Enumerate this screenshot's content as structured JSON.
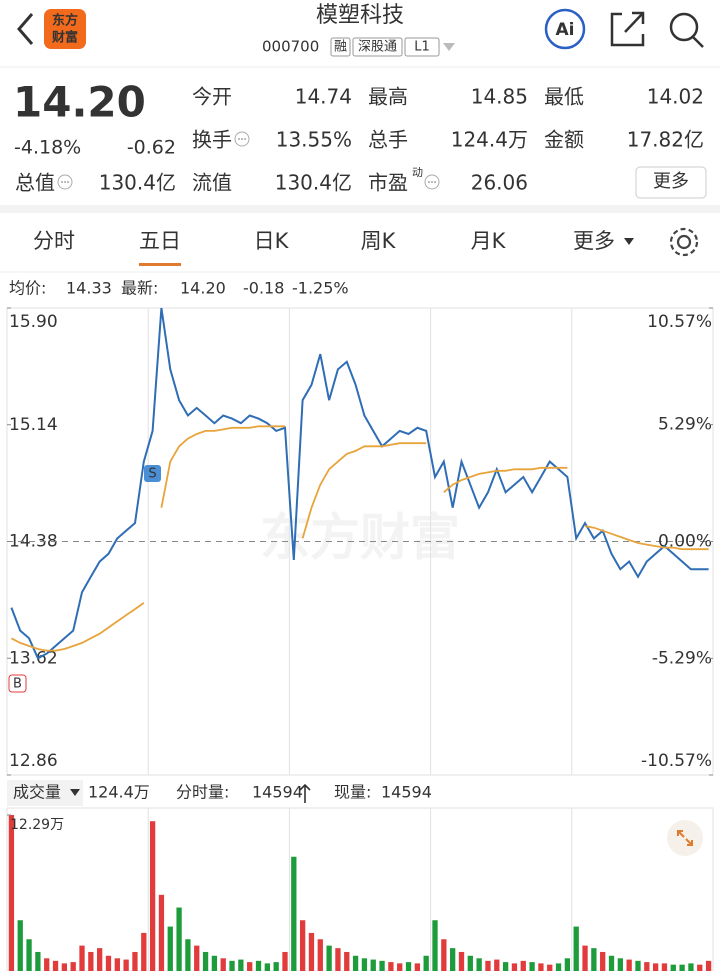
{
  "header": {
    "title": "模塑科技",
    "code": "000700",
    "tags": [
      "融",
      "深股通",
      "L1"
    ],
    "logo": [
      "东方",
      "财富"
    ],
    "ai": "Ai"
  },
  "quote": {
    "price": "14.20",
    "change_percent": "-4.18%",
    "change": "-0.62",
    "more": "更多",
    "fields": [
      [
        {
          "label": "今开",
          "value": "14.74",
          "color": "#1e9b3a"
        },
        {
          "label": "最高",
          "value": "14.85",
          "color": "#e13b3b"
        },
        {
          "label": "最低",
          "value": "14.02",
          "color": "#1e9b3a"
        }
      ],
      [
        {
          "label": "换手",
          "value": "13.55%",
          "info": true
        },
        {
          "label": "总手",
          "value": "124.4万"
        },
        {
          "label": "金额",
          "value": "17.82亿"
        }
      ],
      [
        {
          "label": "总值",
          "value": "130.4亿",
          "info": true
        },
        {
          "label": "流值",
          "value": "130.4亿"
        },
        {
          "label": "市盈",
          "value": "26.06",
          "superscript": "动",
          "info": true
        }
      ]
    ]
  },
  "tabs": {
    "items": [
      "分时",
      "五日",
      "日K",
      "周K",
      "月K",
      "更多"
    ],
    "active": 1
  },
  "info": {
    "avg": "14.33",
    "last": "14.20",
    "change": "-0.18",
    "change_percent": "-1.25%"
  },
  "volume_info": {
    "selector": "成交量",
    "total": "124.4万",
    "tick_label": "分时量:",
    "tick": "14594",
    "now_label": "现量:",
    "now": "14594"
  },
  "watermark": "东方财富",
  "markers": {
    "buy": "B",
    "sell": "S"
  },
  "chart_data": [
    {
      "type": "line",
      "ylim": [
        12.86,
        15.9
      ],
      "yticks": [
        {
          "value": 15.9,
          "label": "15.90"
        },
        15.14,
        14.38,
        13.62,
        12.86
      ],
      "y2lim": [
        -10.57,
        10.57
      ],
      "y2ticks": [
        {
          "value": 10.57,
          "label": "10.57%"
        },
        {
          "value": 5.29,
          "label": "5.29%"
        },
        {
          "value": 0,
          "label": "0.00%"
        },
        {
          "value": -5.29,
          "label": "-5.29%"
        },
        {
          "value": -10.57,
          "label": "-10.57%"
        }
      ],
      "series": [
        {
          "name": "最新:",
          "color": "#2f6db5",
          "values": [
            13.95,
            13.8,
            13.75,
            13.62,
            13.65,
            13.7,
            13.75,
            13.8,
            14.05,
            14.15,
            14.25,
            14.3,
            14.4,
            14.45,
            14.5,
            14.9,
            15.1,
            15.9,
            15.5,
            15.3,
            15.2,
            15.25,
            15.2,
            15.15,
            15.2,
            15.18,
            15.15,
            15.2,
            15.18,
            15.15,
            15.1,
            15.12,
            14.26,
            15.3,
            15.4,
            15.6,
            15.3,
            15.5,
            15.55,
            15.4,
            15.2,
            15.1,
            15.0,
            15.05,
            15.1,
            15.08,
            15.12,
            15.1,
            14.8,
            14.9,
            14.6,
            14.9,
            14.75,
            14.6,
            14.7,
            14.85,
            14.7,
            14.75,
            14.8,
            14.7,
            14.8,
            14.9,
            14.85,
            14.8,
            14.4,
            14.5,
            14.4,
            14.45,
            14.3,
            14.2,
            14.25,
            14.15,
            14.25,
            14.3,
            14.35,
            14.3,
            14.25,
            14.2,
            14.2,
            14.2
          ]
        },
        {
          "name": "均价:",
          "color": "#e8a33a",
          "values": [
            13.75,
            13.72,
            13.7,
            13.68,
            13.67,
            13.67,
            13.68,
            13.7,
            13.72,
            13.75,
            13.78,
            13.82,
            13.86,
            13.9,
            13.94,
            13.98,
            null,
            14.6,
            14.9,
            15.0,
            15.05,
            15.08,
            15.1,
            15.1,
            15.11,
            15.12,
            15.12,
            15.12,
            15.13,
            15.13,
            15.13,
            15.13,
            null,
            14.4,
            14.6,
            14.75,
            14.85,
            14.9,
            14.95,
            14.97,
            15.0,
            15.0,
            15.0,
            15.01,
            15.02,
            15.02,
            15.02,
            15.02,
            null,
            14.7,
            14.75,
            14.78,
            14.8,
            14.82,
            14.83,
            14.84,
            14.84,
            14.85,
            14.85,
            14.85,
            14.86,
            14.86,
            14.86,
            14.86,
            null,
            14.48,
            14.47,
            14.45,
            14.43,
            14.41,
            14.39,
            14.37,
            14.36,
            14.35,
            14.34,
            14.34,
            14.33,
            14.33,
            14.33,
            14.33
          ]
        }
      ]
    },
    {
      "type": "bar",
      "ylim": [
        0,
        122900
      ],
      "yticks": [
        {
          "value": 122900,
          "label": "12.29万"
        }
      ],
      "values": [
        122900,
        40000,
        25000,
        15000,
        10000,
        8000,
        6000,
        7000,
        20000,
        15000,
        18000,
        12000,
        10000,
        9000,
        15000,
        30000,
        118000,
        60000,
        35000,
        50000,
        25000,
        20000,
        15000,
        12000,
        10000,
        8000,
        9000,
        7000,
        8000,
        6000,
        7000,
        15000,
        90000,
        40000,
        30000,
        25000,
        20000,
        18000,
        15000,
        12000,
        10000,
        9000,
        8000,
        7000,
        6000,
        7000,
        6000,
        12000,
        40000,
        25000,
        18000,
        15000,
        12000,
        10000,
        8000,
        9000,
        7000,
        6000,
        8000,
        7000,
        6000,
        5000,
        6000,
        10000,
        35000,
        20000,
        18000,
        15000,
        12000,
        10000,
        9000,
        8000,
        7000,
        6000,
        6000,
        5000,
        5000,
        6000,
        5000,
        8000
      ]
    }
  ]
}
